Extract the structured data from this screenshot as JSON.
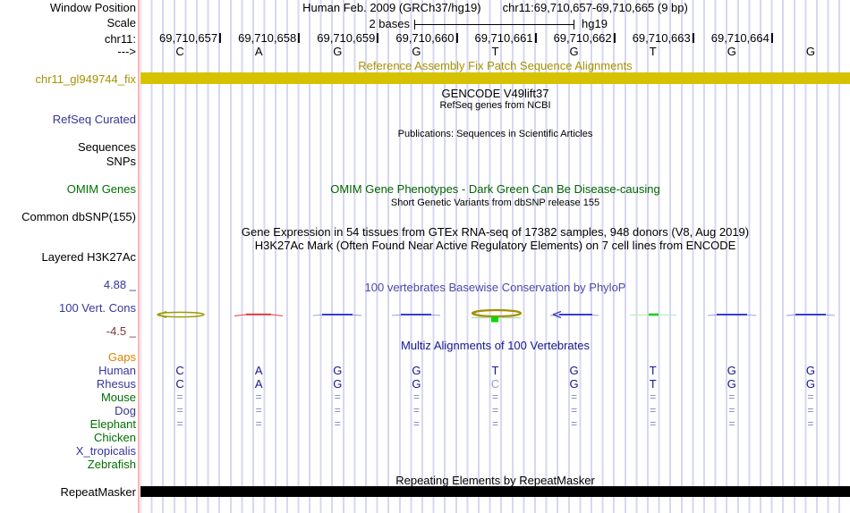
{
  "window": {
    "assembly_title": "Human Feb. 2009 (GRCh37/hg19)",
    "position_title": "chr11:69,710,657-69,710,665 (9 bp)",
    "left_labels": {
      "window_position": "Window Position",
      "scale": "Scale",
      "chrom": "chr11:",
      "strand": "--->"
    },
    "scale": {
      "label": "2 bases",
      "tag": "hg19"
    }
  },
  "ruler": {
    "positions": [
      "69,710,657",
      "69,710,658",
      "69,710,659",
      "69,710,660",
      "69,710,661",
      "69,710,662",
      "69,710,663",
      "69,710,664"
    ],
    "bases": [
      "C",
      "A",
      "G",
      "G",
      "T",
      "G",
      "T",
      "G",
      "G"
    ]
  },
  "tracks": {
    "fix_patch": {
      "title": "Reference Assembly Fix Patch Sequence Alignments",
      "left_label": "chr11_gl949744_fix",
      "bar_color": "#d6c200"
    },
    "gencode": {
      "title": "GENCODE V49lift37",
      "subtitle": "RefSeq genes from NCBI",
      "left_label": "RefSeq Curated"
    },
    "publications": {
      "title": "Publications: Sequences in Scientific Articles",
      "left_label_1": "Sequences",
      "left_label_2": "SNPs"
    },
    "omim": {
      "title": "OMIM Gene Phenotypes - Dark Green Can Be Disease-causing",
      "left_label": "OMIM Genes"
    },
    "dbsnp": {
      "title": "Short Genetic Variants from dbSNP release 155",
      "left_label": "Common dbSNP(155)"
    },
    "gtex": {
      "title": "Gene Expression in 54 tissues from GTEx RNA-seq of 17382 samples, 948 donors (V8, Aug 2019)"
    },
    "h3k27ac": {
      "title": "H3K27Ac Mark (Often Found Near Active Regulatory Elements) on 7 cell lines from ENCODE",
      "left_label": "Layered H3K27Ac"
    },
    "conservation": {
      "title": "100 vertebrates Basewise Conservation by PhyloP",
      "left_label": "100 Vert. Cons",
      "axis_max": "4.88 _",
      "axis_min": "-4.5 _",
      "marks": [
        {
          "style": "olive-loop"
        },
        {
          "style": "red-arc"
        },
        {
          "style": "blue-line"
        },
        {
          "style": "blue-line"
        },
        {
          "style": "olive-green"
        },
        {
          "style": "blue-arrow"
        },
        {
          "style": "green-dash"
        },
        {
          "style": "blue-line"
        },
        {
          "style": "blue-line"
        }
      ]
    },
    "multiz": {
      "title": "Multiz Alignments of 100 Vertebrates",
      "rows": [
        {
          "label": "Gaps",
          "label_color": "#dd8500",
          "cells": []
        },
        {
          "label": "Human",
          "label_color": "#36369c",
          "cells": [
            "C",
            "A",
            "G",
            "G",
            "T",
            "G",
            "T",
            "G",
            "G"
          ]
        },
        {
          "label": "Rhesus",
          "label_color": "#36369c",
          "cells": [
            "C",
            "A",
            "G",
            "G",
            {
              "t": "C",
              "dim": true
            },
            "G",
            "T",
            "G",
            "G"
          ]
        },
        {
          "label": "Mouse",
          "label_color": "#007000",
          "cells": [
            "=",
            "=",
            "=",
            "=",
            "=",
            "=",
            "=",
            "=",
            "="
          ]
        },
        {
          "label": "Dog",
          "label_color": "#36369c",
          "cells": [
            "=",
            "=",
            "=",
            "=",
            "=",
            "=",
            "=",
            "=",
            "="
          ]
        },
        {
          "label": "Elephant",
          "label_color": "#007000",
          "cells": [
            "=",
            "=",
            "=",
            "=",
            "=",
            "=",
            "=",
            "=",
            "="
          ]
        },
        {
          "label": "Chicken",
          "label_color": "#007000",
          "cells": []
        },
        {
          "label": "X_tropicalis",
          "label_color": "#36369c",
          "cells": []
        },
        {
          "label": "Zebrafish",
          "label_color": "#007000",
          "cells": []
        }
      ]
    },
    "repeatmasker": {
      "title": "Repeating Elements by RepeatMasker",
      "left_label": "RepeatMasker"
    }
  }
}
